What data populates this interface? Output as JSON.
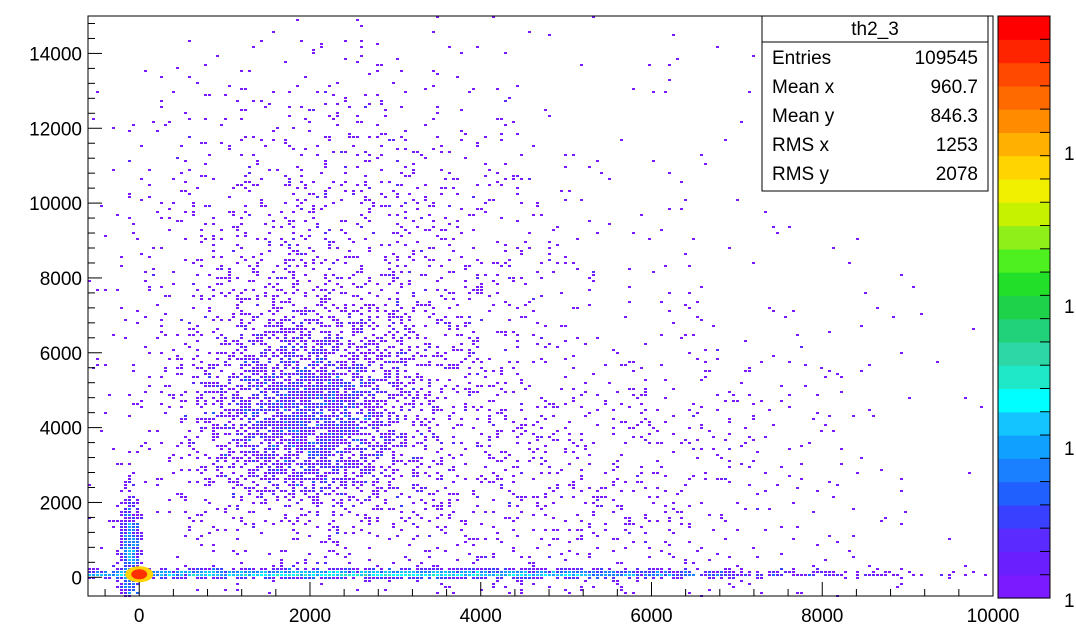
{
  "chart_data": {
    "type": "heatmap",
    "title": "",
    "xlabel": "",
    "ylabel": "",
    "xlim": [
      -600,
      10000
    ],
    "ylim": [
      -500,
      15000
    ],
    "x_ticks": [
      0,
      2000,
      4000,
      6000,
      8000,
      10000
    ],
    "y_ticks": [
      0,
      2000,
      4000,
      6000,
      8000,
      10000,
      12000,
      14000
    ],
    "grid": false,
    "stats_box": {
      "name": "th2_3",
      "rows": [
        {
          "label": "Entries",
          "value": "109545"
        },
        {
          "label": "Mean x",
          "value": "960.7"
        },
        {
          "label": "Mean y",
          "value": "846.3"
        },
        {
          "label": "RMS x",
          "value": "1253"
        },
        {
          "label": "RMS y",
          "value": "2078"
        }
      ]
    },
    "color_scale": {
      "labels": [
        "1",
        "1",
        "1",
        "1"
      ],
      "colors": [
        "#7b1aff",
        "#6a1fff",
        "#5a2aff",
        "#3a40ff",
        "#2060ff",
        "#1a80ff",
        "#10a0ff",
        "#14c4ff",
        "#00ffff",
        "#1ee8c8",
        "#2ed8a6",
        "#22d27a",
        "#1ed24a",
        "#22e02a",
        "#4ef020",
        "#8ef018",
        "#c6f200",
        "#f0f000",
        "#ffd400",
        "#ffb000",
        "#ff8c00",
        "#ff6a00",
        "#ff4800",
        "#ff2400",
        "#ff0000"
      ]
    },
    "clusters": [
      {
        "cx": 2000,
        "cy": 4300,
        "sx": 650,
        "sy": 1300,
        "n": 2600
      },
      {
        "cx": 2300,
        "cy": 7500,
        "sx": 1300,
        "sy": 3000,
        "n": 1400
      },
      {
        "cx": 2600,
        "cy": 60,
        "sx": 2300,
        "sy": 70,
        "n": 3400
      },
      {
        "cx": -100,
        "cy": 600,
        "sx": 60,
        "sy": 800,
        "n": 600
      },
      {
        "cx": 4500,
        "cy": 2500,
        "sx": 2200,
        "sy": 2500,
        "n": 1300
      },
      {
        "cx": 3500,
        "cy": 9500,
        "sx": 2700,
        "sy": 3200,
        "n": 400
      }
    ]
  }
}
